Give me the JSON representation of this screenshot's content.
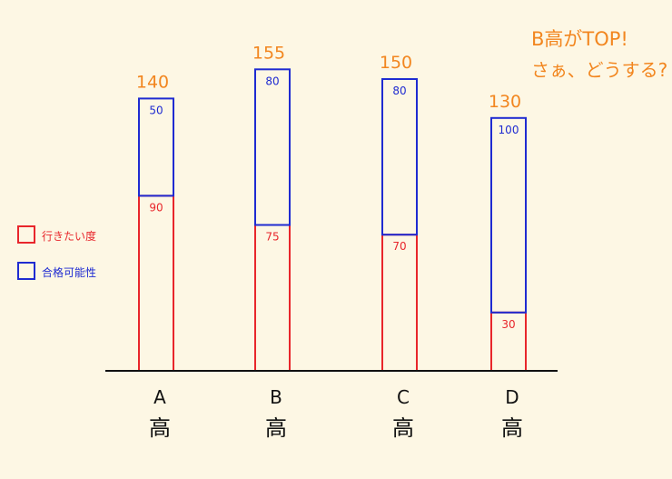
{
  "annotation": {
    "line1": "B高がTOP!",
    "line2": "さぁ、どうする?"
  },
  "legend": {
    "placement": "left",
    "items": [
      {
        "label": "行きたい度",
        "color": "#e8262b"
      },
      {
        "label": "合格可能性",
        "color": "#1f2bd1"
      }
    ]
  },
  "colors": {
    "total_label": "#f2861f",
    "axis": "#111111",
    "background": "#fdf7e4"
  },
  "chart_data": {
    "type": "bar",
    "stacked": true,
    "categories": [
      "A",
      "B",
      "C",
      "D"
    ],
    "category_suffix": "高",
    "series": [
      {
        "name": "行きたい度",
        "values": [
          90,
          75,
          70,
          30
        ],
        "color": "#e8262b"
      },
      {
        "name": "合格可能性",
        "values": [
          50,
          80,
          80,
          100
        ],
        "color": "#1f2bd1"
      }
    ],
    "totals": [
      140,
      155,
      150,
      130
    ],
    "ylim": [
      0,
      160
    ],
    "grid": false,
    "title": "",
    "xlabel": "",
    "ylabel": ""
  }
}
